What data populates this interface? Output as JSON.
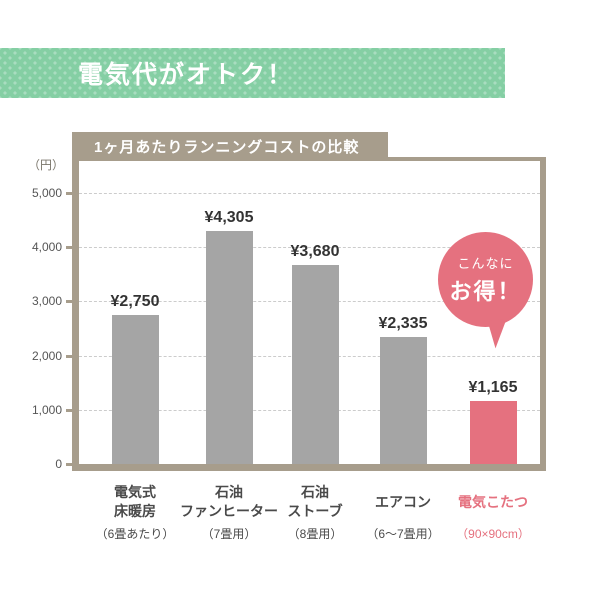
{
  "banner": {
    "label": "電気代がオトク！",
    "bg": "#85cfa4",
    "dot_color": "#a9dcc0",
    "text_color": "#ffffff"
  },
  "chart": {
    "title": "1ヶ月あたりランニングコストの比較",
    "unit_label": "（円）",
    "frame_color": "#a79d8c",
    "grid_color": "#cccccc",
    "bar_color": "#a5a5a5",
    "highlight_color": "#e5717f",
    "value_text_color": "#333333",
    "category_text_color": "#4a4a4a",
    "ytick_text_color": "#555555"
  },
  "chart_data": {
    "type": "bar",
    "title": "1ヶ月あたりランニングコストの比較",
    "ylabel": "（円）",
    "ylim": [
      0,
      5000
    ],
    "ytick_step": 1000,
    "ytick_labels": [
      "0",
      "1,000",
      "2,000",
      "3,000",
      "4,000",
      "5,000"
    ],
    "grid": true,
    "legend": "none",
    "categories": [
      {
        "label_lines": [
          "電気式",
          "床暖房"
        ],
        "note": "（6畳あたり）",
        "highlight": false
      },
      {
        "label_lines": [
          "石油",
          "ファンヒーター"
        ],
        "note": "（7畳用）",
        "highlight": false
      },
      {
        "label_lines": [
          "石油",
          "ストーブ"
        ],
        "note": "（8畳用）",
        "highlight": false
      },
      {
        "label_lines": [
          "エアコン"
        ],
        "note": "（6～7畳用）",
        "highlight": false
      },
      {
        "label_lines": [
          "電気こたつ"
        ],
        "note": "（90×90cm）",
        "highlight": true
      }
    ],
    "values": [
      2750,
      4305,
      3680,
      2335,
      1165
    ],
    "value_labels": [
      "¥2,750",
      "¥4,305",
      "¥3,680",
      "¥2,335",
      "¥1,165"
    ],
    "highlight_index": 4
  },
  "bubble": {
    "line1": "こんなに",
    "line2": "お得！"
  }
}
